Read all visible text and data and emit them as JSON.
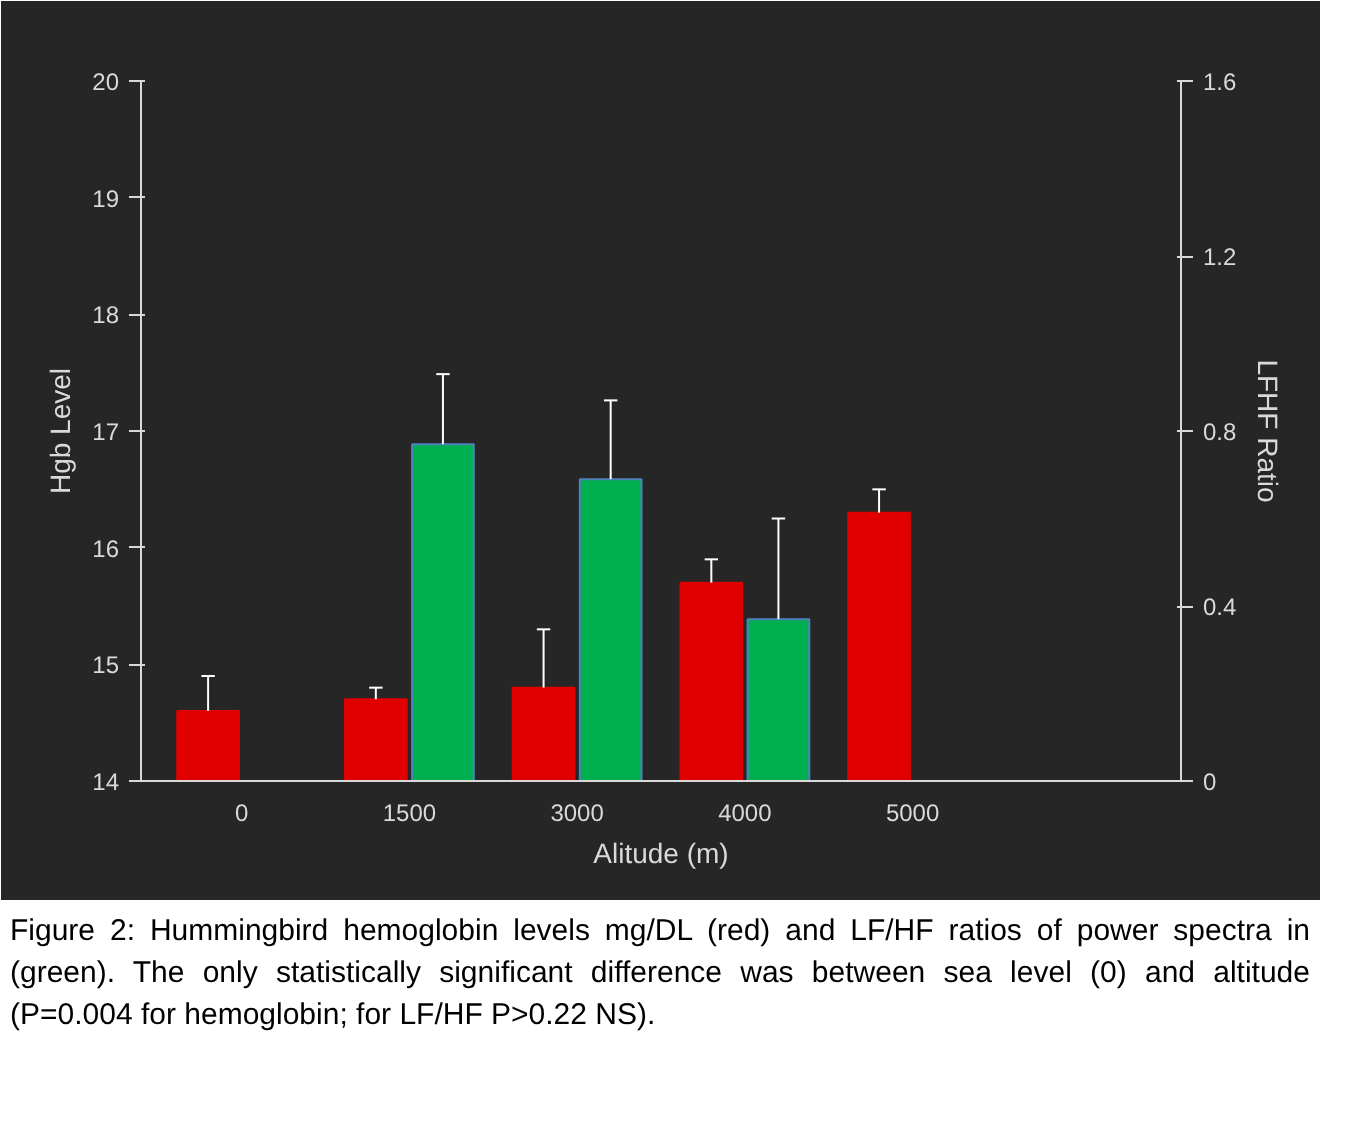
{
  "chart_data": {
    "type": "bar",
    "categories": [
      "0",
      "1500",
      "3000",
      "4000",
      "5000",
      null
    ],
    "xlabel": "Alitude (m)",
    "ylabel": "Hgb Level",
    "y2label": "LFHF Ratio",
    "ylim": [
      14,
      20
    ],
    "yticks": [
      14,
      15,
      16,
      17,
      18,
      19,
      20
    ],
    "y2lim": [
      0,
      1.6
    ],
    "y2ticks": [
      0,
      0.4,
      0.8,
      1.2,
      1.6
    ],
    "grid": false,
    "series": [
      {
        "color": "#e00000",
        "values": [
          14.6,
          14.7,
          14.8,
          15.7,
          16.3,
          null
        ],
        "errors": [
          [
            14.6,
            14.9
          ],
          [
            14.7,
            14.8
          ],
          [
            14.8,
            15.3
          ],
          [
            15.7,
            15.9
          ],
          [
            16.3,
            16.5
          ],
          null
        ]
      },
      {
        "color": "#00b050",
        "axis": "y2",
        "values": [
          null,
          0.77,
          0.69,
          0.37,
          null,
          null
        ],
        "errors": [
          null,
          [
            0.77,
            0.93
          ],
          [
            0.69,
            0.87
          ],
          [
            0.37,
            0.6
          ],
          null,
          null
        ]
      }
    ],
    "annotations": [
      "Figure 2: Hummingbird hemoglobin levels mg/DL (red) and LF/HF ratios of power spectra in (green). The only statistically significant difference was between sea level (0) and altitude (P=0.004 for hemoglobin; for LF/HF P>0.22 NS)."
    ]
  }
}
